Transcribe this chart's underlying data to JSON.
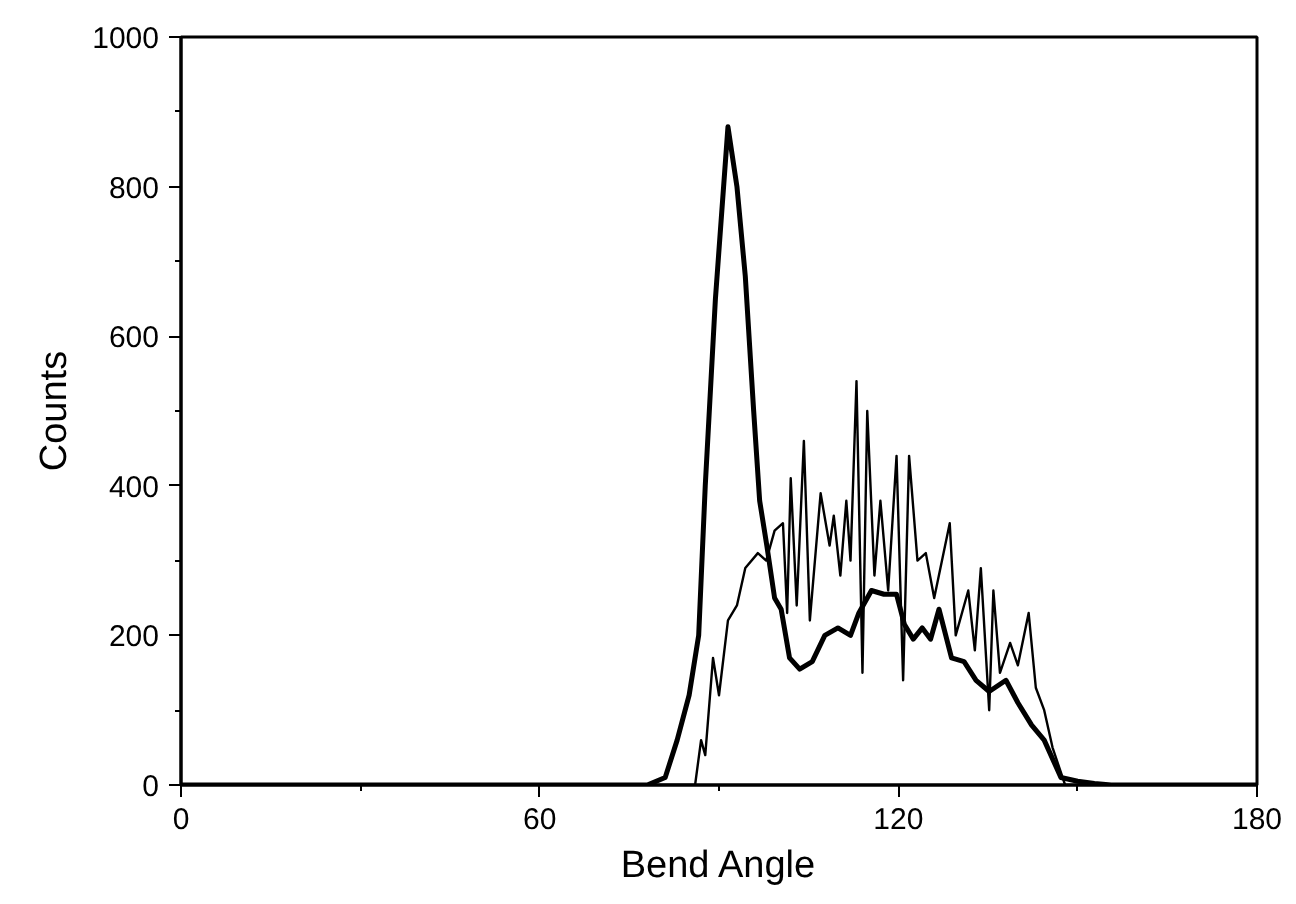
{
  "chart_data": {
    "type": "line",
    "xlabel": "Bend Angle",
    "ylabel": "Counts",
    "xlim": [
      0,
      180
    ],
    "ylim": [
      0,
      1000
    ],
    "xticks": [
      0,
      60,
      120,
      180
    ],
    "yticks": [
      0,
      200,
      400,
      600,
      800,
      1000
    ],
    "grid": false,
    "marker": "none",
    "line_style": "solid",
    "series": [
      {
        "color": "#000000",
        "x": [
          0,
          78,
          81,
          83,
          85,
          86.6,
          87.7,
          89.4,
          91.5,
          93,
          94.4,
          95.8,
          96.8,
          98,
          99.3,
          100.4,
          101.8,
          103.5,
          105.6,
          107.7,
          109.9,
          112,
          113.4,
          115.5,
          117.6,
          119.7,
          121,
          122.5,
          124,
          125.4,
          126.8,
          128.9,
          131,
          133,
          135.2,
          138,
          140,
          142.3,
          144.4,
          147.2,
          150,
          152.8,
          155.6,
          180
        ],
        "values": [
          0,
          0,
          10,
          60,
          120,
          200,
          400,
          650,
          880,
          800,
          680,
          500,
          380,
          320,
          250,
          235,
          170,
          155,
          165,
          200,
          210,
          200,
          230,
          260,
          255,
          255,
          215,
          195,
          210,
          195,
          235,
          170,
          165,
          140,
          125,
          140,
          110,
          80,
          60,
          10,
          5,
          2,
          0,
          0
        ]
      },
      {
        "color": "#000000",
        "x": [
          0,
          86,
          87,
          87.7,
          89,
          90,
          91.5,
          93,
          94.4,
          96.5,
          97.9,
          99.3,
          100.7,
          101.4,
          102,
          103,
          104.2,
          105.2,
          107,
          108.5,
          109.2,
          110.3,
          111.3,
          112,
          113,
          114,
          114.8,
          116,
          117,
          118.3,
          119.7,
          120.8,
          121.8,
          123.2,
          124.6,
          126,
          128.6,
          129.6,
          131.7,
          132.8,
          133.8,
          135.2,
          135.9,
          137,
          138.7,
          140,
          141.8,
          143,
          144.4,
          145.8,
          147.9,
          180
        ],
        "values": [
          0,
          0,
          60,
          40,
          170,
          120,
          220,
          240,
          290,
          310,
          300,
          340,
          350,
          230,
          410,
          240,
          460,
          220,
          390,
          320,
          360,
          280,
          380,
          300,
          540,
          150,
          500,
          280,
          380,
          260,
          440,
          140,
          440,
          300,
          310,
          250,
          350,
          200,
          260,
          180,
          290,
          100,
          260,
          150,
          190,
          160,
          230,
          130,
          100,
          50,
          0,
          0
        ]
      }
    ]
  }
}
